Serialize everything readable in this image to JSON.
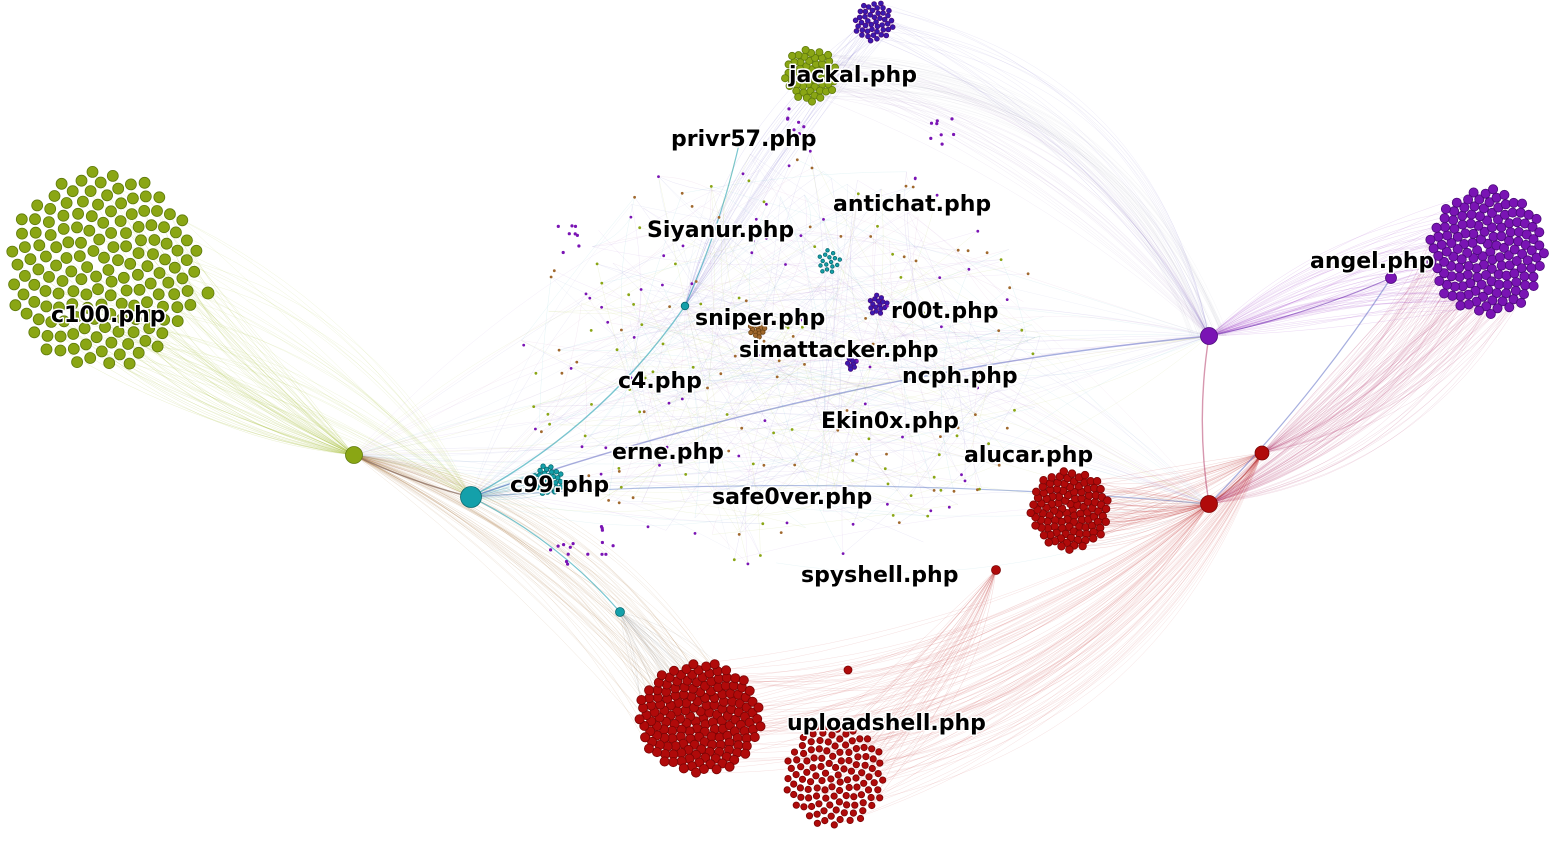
{
  "labels": {
    "jackal": "jackal.php",
    "privr57": "privr57.php",
    "antichat": "antichat.php",
    "siyanur": "Siyanur.php",
    "c100": "c100.php",
    "angel": "angel.php",
    "sniper": "sniper.php",
    "r00t": "r00t.php",
    "simattacker": "simattacker.php",
    "c4": "c4.php",
    "ncph": "ncph.php",
    "ekin0x": "Ekin0x.php",
    "erne": "erne.php",
    "alucar": "alucar.php",
    "c99": "c99.php",
    "safe0ver": "safe0ver.php",
    "spyshell": "spyshell.php",
    "uploadshell": "uploadshell.php"
  },
  "colors": {
    "olive": "#8aa614",
    "olive_dark": "#5f7a0b",
    "purple": "#7a14b4",
    "purple_dark": "#4b0a7a",
    "indigo": "#3a1ab0",
    "red": "#b00a0a",
    "red_dark": "#7a0505",
    "teal": "#14a0aa",
    "brown": "#a0682d",
    "background": "#ffffff"
  }
}
